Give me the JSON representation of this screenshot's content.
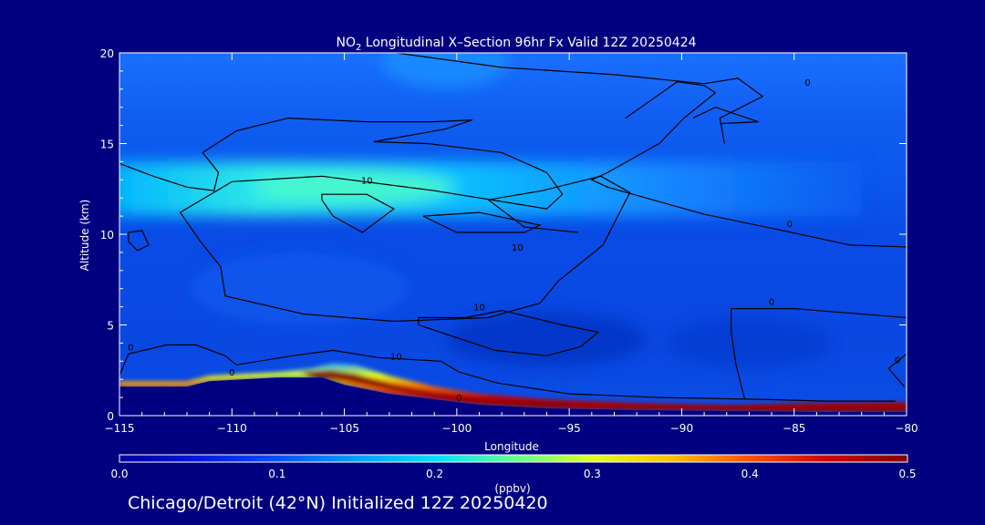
{
  "chart_data": {
    "type": "heatmap",
    "title": "NO₂ Longitudinal X–Section 96hr  Fx Valid 12Z 20250424",
    "title_prefix": "NO",
    "title_subscript": "2",
    "title_suffix": " Longitudinal X–Section 96hr  Fx Valid 12Z 20250424",
    "xlabel": "Longitude",
    "ylabel": "Altitude (km)",
    "xlim": [
      -115,
      -80
    ],
    "ylim": [
      0,
      20
    ],
    "x_ticks": [
      -115,
      -110,
      -105,
      -100,
      -95,
      -90,
      -85,
      -80
    ],
    "x_tick_labels": [
      "−115",
      "−110",
      "−105",
      "−100",
      "−95",
      "−90",
      "−85",
      "−80"
    ],
    "y_ticks": [
      0,
      5,
      10,
      15,
      20
    ],
    "y_tick_labels": [
      "0",
      "5",
      "10",
      "15",
      "20"
    ],
    "colorbar": {
      "min": 0.0,
      "max": 0.5,
      "ticks": [
        0.0,
        0.1,
        0.2,
        0.3,
        0.4,
        0.5
      ],
      "tick_labels": [
        "0.0",
        "0.1",
        "0.2",
        "0.3",
        "0.4",
        "0.5"
      ],
      "label": "(ppbv)",
      "colors": [
        "#0000a0",
        "#0018e0",
        "#0050ff",
        "#00a0ff",
        "#00e0ff",
        "#60ff90",
        "#e0ff20",
        "#ffc000",
        "#ff5000",
        "#d00000",
        "#800000"
      ]
    },
    "contour_labels": [
      {
        "text": "0",
        "lon": -84.4,
        "alt": 18.2
      },
      {
        "text": "0",
        "lon": -85.2,
        "alt": 10.4
      },
      {
        "text": "0",
        "lon": -86.0,
        "alt": 6.1
      },
      {
        "text": "0",
        "lon": -80.4,
        "alt": 2.9
      },
      {
        "text": "0",
        "lon": -114.5,
        "alt": 3.6
      },
      {
        "text": "0",
        "lon": -110.0,
        "alt": 2.2
      },
      {
        "text": "0",
        "lon": -99.9,
        "alt": 0.8
      },
      {
        "text": "10",
        "lon": -104.0,
        "alt": 12.8
      },
      {
        "text": "10",
        "lon": -97.3,
        "alt": 9.1
      },
      {
        "text": "10",
        "lon": -99.0,
        "alt": 5.8
      },
      {
        "text": "10",
        "lon": -102.7,
        "alt": 3.1
      }
    ],
    "no2_fields": [
      {
        "region": "upper troposphere layer",
        "lon_range": [
          -115,
          -95
        ],
        "alt_range": [
          11,
          14
        ],
        "value": 0.17
      },
      {
        "region": "upper background",
        "lon_range": [
          -115,
          -80
        ],
        "alt_range": [
          14,
          20
        ],
        "value": 0.1
      },
      {
        "region": "mid troposphere",
        "lon_range": [
          -115,
          -80
        ],
        "alt_range": [
          2,
          11
        ],
        "value": 0.07
      },
      {
        "region": "boundary layer west",
        "lon_range": [
          -115,
          -106
        ],
        "alt_range": [
          1.6,
          2.2
        ],
        "value": 0.45
      },
      {
        "region": "boundary layer peak",
        "lon_range": [
          -106,
          -100
        ],
        "alt_range": [
          1.0,
          2.5
        ],
        "value": 0.5
      },
      {
        "region": "boundary layer east",
        "lon_range": [
          -100,
          -80
        ],
        "alt_range": [
          0,
          1.0
        ],
        "value": 0.5
      }
    ]
  },
  "footer": "Chicago/Detroit (42°N) Initialized 12Z 20250420"
}
